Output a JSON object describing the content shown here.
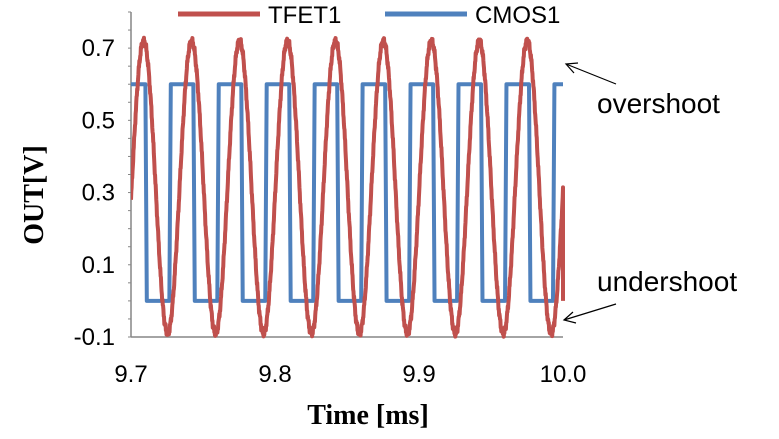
{
  "chart_data": {
    "type": "line",
    "title": "",
    "xlabel": "Time [ms]",
    "ylabel": "OUT[V]",
    "xlim": [
      9.7,
      10.0
    ],
    "ylim": [
      -0.1,
      0.8
    ],
    "x_ticks": [
      "9.7",
      "9.8",
      "9.9",
      "10.0"
    ],
    "y_ticks": [
      "-0.1",
      "0.1",
      "0.3",
      "0.5",
      "0.7"
    ],
    "grid": false,
    "legend_position": "top",
    "period_ms": 0.0333,
    "series": [
      {
        "name": "TFET1",
        "color": "#c0504d",
        "shape": "sinusoid",
        "max": 0.72,
        "min": -0.09,
        "cycles": 9,
        "start_x": 9.7,
        "start_y": 0.28,
        "end_x": 10.0,
        "end_y": 0.0
      },
      {
        "name": "CMOS1",
        "color": "#4f81bd",
        "shape": "square",
        "high": 0.6,
        "low": 0.0,
        "cycles": 9,
        "start_x": 9.7,
        "end_x": 10.0
      }
    ],
    "annotations": [
      {
        "text": "overshoot"
      },
      {
        "text": "undershoot"
      }
    ]
  }
}
